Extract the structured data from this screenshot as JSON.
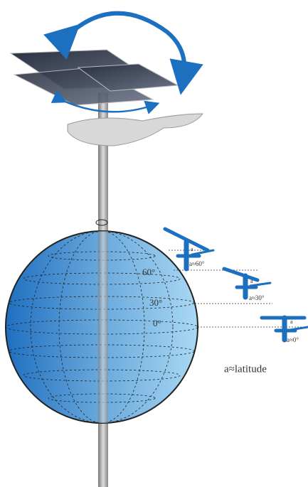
{
  "globe_labels": [
    "60°",
    "30°",
    "0°"
  ],
  "lamps": [
    {
      "angle_label": "a",
      "caption": "a≈60°"
    },
    {
      "angle_label": "a",
      "caption": "a≈30°"
    },
    {
      "angle_label": "a",
      "caption": "a≈0°"
    }
  ],
  "note": "a≈latitude"
}
